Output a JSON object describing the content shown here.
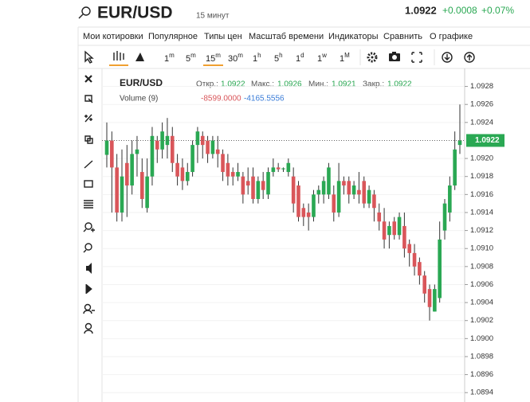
{
  "header": {
    "symbol": "EUR/USD",
    "interval": "15 минут",
    "price": "1.0922",
    "change": "+0.0008",
    "change_pct": "+0.07%"
  },
  "menu": [
    "Мои котировки",
    "Популярное",
    "Типы цен",
    "Масштаб времени",
    "Индикаторы",
    "Сравнить",
    "О графике"
  ],
  "timeframes": [
    {
      "n": "1",
      "u": "m"
    },
    {
      "n": "5",
      "u": "m"
    },
    {
      "n": "15",
      "u": "m"
    },
    {
      "n": "30",
      "u": "m"
    },
    {
      "n": "1",
      "u": "h"
    },
    {
      "n": "5",
      "u": "h"
    },
    {
      "n": "1",
      "u": "d"
    },
    {
      "n": "1",
      "u": "w"
    },
    {
      "n": "1",
      "u": "M"
    }
  ],
  "legend": {
    "symbol": "EUR/USD",
    "open_label": "Откр.:",
    "open": "1.0922",
    "high_label": "Макс.:",
    "high": "1.0926",
    "low_label": "Мин.:",
    "low": "1.0921",
    "close_label": "Закр.:",
    "close": "1.0922",
    "volume_label": "Volume (9)",
    "volume_1": "-8599.0000",
    "volume_2": "-4165.5556"
  },
  "chart_data": {
    "type": "candlestick",
    "up_color": "#2aa853",
    "down_color": "#d9565a",
    "grid": true,
    "last": 1.0922,
    "ylim": [
      1.08934,
      1.09292
    ],
    "yticks": [
      1.0928,
      1.0926,
      1.0924,
      {
        "value": 1.092,
        "label": "1.0920"
      },
      1.0918,
      1.0916,
      1.0914,
      1.0912,
      {
        "value": 1.091,
        "label": "1.0910"
      },
      1.0908,
      1.0906,
      1.0904,
      1.0902,
      {
        "value": 1.09,
        "label": "1.0900"
      },
      1.0898,
      1.0896,
      1.0894
    ],
    "open": [
      1.09204,
      1.0922,
      1.0919,
      1.0914,
      1.09195,
      1.0917,
      1.09205,
      1.09185,
      1.09145,
      1.0918,
      1.0922,
      1.0921,
      1.09215,
      1.09225,
      1.09195,
      1.0919,
      1.09175,
      1.09185,
      1.09215,
      1.09225,
      1.0922,
      1.09205,
      1.0921,
      1.09205,
      1.09195,
      1.09185,
      1.0918,
      1.0918,
      1.09175,
      1.0918,
      1.09155,
      1.09175,
      1.0916,
      1.09185,
      1.0919,
      1.09188,
      1.09185,
      1.0918,
      1.0917,
      1.09145,
      1.0914,
      1.09135,
      1.0916,
      1.0916,
      1.0916,
      1.0916,
      1.0914,
      1.09175,
      1.09175,
      1.0916,
      1.09165,
      1.09175,
      1.0915,
      1.0916,
      1.0914,
      1.0913,
      1.09115,
      1.0913,
      1.09115,
      1.09125,
      1.09105,
      1.09095,
      1.09085,
      1.0907,
      1.09055,
      1.0903,
      1.09045,
      1.0912,
      1.0914,
      1.0917,
      1.09215
    ],
    "high": [
      1.0924,
      1.0923,
      1.09205,
      1.0921,
      1.09215,
      1.0922,
      1.09225,
      1.092,
      1.092,
      1.09235,
      1.09225,
      1.0924,
      1.09245,
      1.09235,
      1.09205,
      1.092,
      1.09195,
      1.0922,
      1.09235,
      1.0923,
      1.09225,
      1.09225,
      1.09225,
      1.0921,
      1.09205,
      1.0919,
      1.09195,
      1.09185,
      1.0919,
      1.0919,
      1.0918,
      1.09185,
      1.0919,
      1.092,
      1.09195,
      1.0919,
      1.092,
      1.0919,
      1.09175,
      1.0915,
      1.0915,
      1.09165,
      1.0917,
      1.0918,
      1.09195,
      1.0917,
      1.09195,
      1.0918,
      1.0918,
      1.09175,
      1.09185,
      1.0918,
      1.0917,
      1.09165,
      1.0915,
      1.09145,
      1.0913,
      1.09135,
      1.0914,
      1.0914,
      1.0911,
      1.09105,
      1.0909,
      1.09075,
      1.0906,
      1.0906,
      1.0913,
      1.09155,
      1.0918,
      1.0923,
      1.0926
    ],
    "low": [
      1.0919,
      1.0914,
      1.0913,
      1.0913,
      1.09135,
      1.0916,
      1.0918,
      1.09145,
      1.0914,
      1.0917,
      1.09195,
      1.092,
      1.092,
      1.09185,
      1.0917,
      1.09165,
      1.0917,
      1.0918,
      1.09195,
      1.092,
      1.09195,
      1.092,
      1.0919,
      1.09175,
      1.0917,
      1.0917,
      1.09175,
      1.0915,
      1.0916,
      1.0915,
      1.0915,
      1.09155,
      1.09155,
      1.0918,
      1.09185,
      1.09185,
      1.0918,
      1.0914,
      1.0913,
      1.09125,
      1.0912,
      1.0913,
      1.0915,
      1.0915,
      1.09155,
      1.0913,
      1.09135,
      1.0916,
      1.0915,
      1.09155,
      1.0915,
      1.09145,
      1.09145,
      1.0913,
      1.0912,
      1.091,
      1.091,
      1.0911,
      1.0911,
      1.0909,
      1.0908,
      1.0907,
      1.0906,
      1.0904,
      1.0902,
      1.0903,
      1.0904,
      1.0911,
      1.0913,
      1.09165,
      1.09205
    ],
    "close": [
      1.0922,
      1.0919,
      1.0914,
      1.0918,
      1.0917,
      1.09205,
      1.0921,
      1.09155,
      1.0918,
      1.09225,
      1.0921,
      1.0923,
      1.09225,
      1.09195,
      1.0918,
      1.09175,
      1.09185,
      1.09215,
      1.0923,
      1.09215,
      1.09205,
      1.0922,
      1.09205,
      1.09185,
      1.0918,
      1.0918,
      1.09185,
      1.0916,
      1.0917,
      1.09155,
      1.09175,
      1.09165,
      1.09185,
      1.0919,
      1.09188,
      1.09189,
      1.09195,
      1.0915,
      1.09135,
      1.09135,
      1.09135,
      1.0916,
      1.09165,
      1.09175,
      1.0919,
      1.0914,
      1.09175,
      1.0917,
      1.0916,
      1.0917,
      1.0916,
      1.0915,
      1.09165,
      1.09145,
      1.0913,
      1.0911,
      1.09125,
      1.09115,
      1.09135,
      1.091,
      1.09095,
      1.0908,
      1.0907,
      1.0905,
      1.09035,
      1.09055,
      1.0911,
      1.0915,
      1.0917,
      1.0921,
      1.0922
    ]
  }
}
